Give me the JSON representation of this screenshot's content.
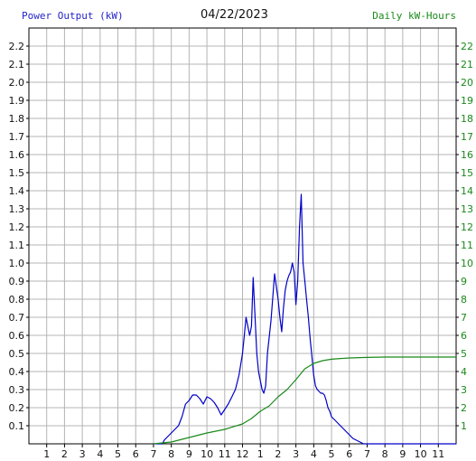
{
  "chart_data": {
    "type": "line",
    "title": "04/22/2023",
    "y_left_label": "Power Output (kW)",
    "y_right_label": "Daily kW-Hours",
    "x_ticks": [
      "1",
      "2",
      "3",
      "4",
      "5",
      "6",
      "7",
      "8",
      "9",
      "10",
      "11",
      "12",
      "1",
      "2",
      "3",
      "4",
      "5",
      "6",
      "7",
      "8",
      "9",
      "10",
      "11"
    ],
    "y_left_ticks": [
      "0.1",
      "0.2",
      "0.3",
      "0.4",
      "0.5",
      "0.6",
      "0.7",
      "0.8",
      "0.9",
      "1.0",
      "1.1",
      "1.2",
      "1.3",
      "1.4",
      "1.5",
      "1.6",
      "1.7",
      "1.8",
      "1.9",
      "2.0",
      "2.1",
      "2.2"
    ],
    "y_right_ticks": [
      "1",
      "2",
      "3",
      "4",
      "5",
      "6",
      "7",
      "8",
      "9",
      "10",
      "11",
      "12",
      "13",
      "14",
      "15",
      "16",
      "17",
      "18",
      "19",
      "20",
      "21",
      "22"
    ],
    "xlim": [
      0,
      24
    ],
    "ylim_left": [
      0,
      2.3
    ],
    "ylim_right": [
      0,
      23
    ],
    "grid": true,
    "colors": {
      "power": "#0000c8",
      "energy": "#1a8a1a",
      "grid": "#b4b4b4",
      "axis": "#000000",
      "left_label": "#2323c8",
      "right_label": "#1a8a1a"
    },
    "series": [
      {
        "name": "Power Output (kW)",
        "axis": "left",
        "x": [
          7.0,
          7.5,
          7.6,
          7.8,
          8.0,
          8.2,
          8.4,
          8.6,
          8.8,
          9.0,
          9.2,
          9.4,
          9.6,
          9.8,
          10.0,
          10.2,
          10.4,
          10.6,
          10.8,
          11.0,
          11.2,
          11.4,
          11.6,
          11.8,
          12.0,
          12.1,
          12.2,
          12.4,
          12.5,
          12.6,
          12.8,
          12.9,
          13.0,
          13.1,
          13.2,
          13.3,
          13.4,
          13.6,
          13.8,
          14.0,
          14.1,
          14.2,
          14.3,
          14.4,
          14.5,
          14.6,
          14.7,
          14.8,
          14.9,
          15.0,
          15.1,
          15.2,
          15.3,
          15.4,
          15.5,
          15.6,
          15.7,
          15.8,
          15.9,
          16.0,
          16.1,
          16.2,
          16.3,
          16.4,
          16.5,
          16.6,
          16.7,
          16.8,
          16.9,
          17.0,
          17.2,
          17.4,
          17.6,
          17.8,
          18.0,
          18.2,
          18.4,
          18.6,
          18.8,
          19.0,
          19.2,
          19.4,
          19.6,
          19.8,
          20.0,
          20.2,
          20.4,
          20.6,
          20.8,
          21.0,
          21.4,
          24.0
        ],
        "y": [
          0.0,
          0.0,
          0.02,
          0.04,
          0.06,
          0.08,
          0.1,
          0.15,
          0.22,
          0.24,
          0.27,
          0.27,
          0.25,
          0.22,
          0.26,
          0.25,
          0.23,
          0.2,
          0.16,
          0.19,
          0.22,
          0.26,
          0.3,
          0.38,
          0.5,
          0.6,
          0.7,
          0.6,
          0.65,
          0.92,
          0.5,
          0.4,
          0.35,
          0.3,
          0.28,
          0.32,
          0.5,
          0.68,
          0.94,
          0.8,
          0.7,
          0.62,
          0.75,
          0.85,
          0.9,
          0.93,
          0.95,
          1.0,
          0.95,
          0.77,
          0.9,
          1.2,
          1.38,
          1.0,
          0.9,
          0.8,
          0.7,
          0.58,
          0.48,
          0.38,
          0.32,
          0.3,
          0.29,
          0.28,
          0.28,
          0.27,
          0.24,
          0.2,
          0.18,
          0.15,
          0.13,
          0.11,
          0.09,
          0.07,
          0.05,
          0.03,
          0.02,
          0.01,
          0.0,
          0.0,
          0.0,
          0.0,
          0.0,
          0.0,
          0.0,
          0.0,
          0.0,
          0.0,
          0.0,
          0.0,
          0.0,
          0.0
        ]
      },
      {
        "name": "Daily kW-Hours",
        "axis": "right",
        "x": [
          7.0,
          7.5,
          8.0,
          9.0,
          10.0,
          11.0,
          12.0,
          12.5,
          13.0,
          13.5,
          14.0,
          14.5,
          15.0,
          15.5,
          16.0,
          16.5,
          17.0,
          17.5,
          18.0,
          19.0,
          20.0,
          21.0,
          22.0,
          23.0,
          24.0
        ],
        "y": [
          0.0,
          0.05,
          0.1,
          0.35,
          0.6,
          0.8,
          1.1,
          1.4,
          1.8,
          2.1,
          2.6,
          3.0,
          3.55,
          4.15,
          4.45,
          4.6,
          4.68,
          4.72,
          4.75,
          4.78,
          4.8,
          4.8,
          4.8,
          4.8,
          4.8
        ]
      }
    ]
  }
}
